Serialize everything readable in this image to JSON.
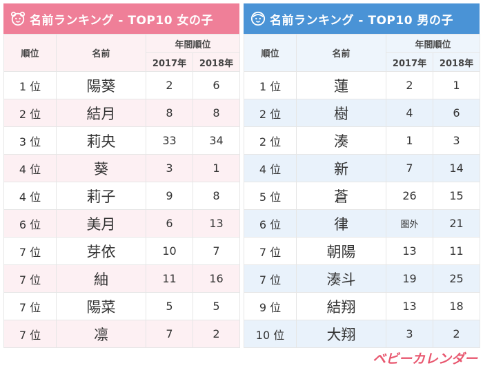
{
  "girls": {
    "title": "名前ランキング - TOP10 女の子",
    "col_rank": "順位",
    "col_name": "名前",
    "col_yearly": "年間順位",
    "col_2017": "2017年",
    "col_2018": "2018年",
    "rows": [
      {
        "rank": "1 位",
        "name": "陽葵",
        "y2017": "2",
        "y2018": "6"
      },
      {
        "rank": "2 位",
        "name": "結月",
        "y2017": "8",
        "y2018": "8"
      },
      {
        "rank": "3 位",
        "name": "莉央",
        "y2017": "33",
        "y2018": "34"
      },
      {
        "rank": "4 位",
        "name": "葵",
        "y2017": "3",
        "y2018": "1"
      },
      {
        "rank": "4 位",
        "name": "莉子",
        "y2017": "9",
        "y2018": "8"
      },
      {
        "rank": "6 位",
        "name": "美月",
        "y2017": "6",
        "y2018": "13"
      },
      {
        "rank": "7 位",
        "name": "芽依",
        "y2017": "10",
        "y2018": "7"
      },
      {
        "rank": "7 位",
        "name": "紬",
        "y2017": "11",
        "y2018": "16"
      },
      {
        "rank": "7 位",
        "name": "陽菜",
        "y2017": "5",
        "y2018": "5"
      },
      {
        "rank": "7 位",
        "name": "凛",
        "y2017": "7",
        "y2018": "2"
      }
    ]
  },
  "boys": {
    "title": "名前ランキング - TOP10 男の子",
    "col_rank": "順位",
    "col_name": "名前",
    "col_yearly": "年間順位",
    "col_2017": "2017年",
    "col_2018": "2018年",
    "rows": [
      {
        "rank": "1 位",
        "name": "蓮",
        "y2017": "2",
        "y2018": "1"
      },
      {
        "rank": "2 位",
        "name": "樹",
        "y2017": "4",
        "y2018": "6"
      },
      {
        "rank": "2 位",
        "name": "湊",
        "y2017": "1",
        "y2018": "3"
      },
      {
        "rank": "4 位",
        "name": "新",
        "y2017": "7",
        "y2018": "14"
      },
      {
        "rank": "5 位",
        "name": "蒼",
        "y2017": "26",
        "y2018": "15"
      },
      {
        "rank": "6 位",
        "name": "律",
        "y2017": "圏外",
        "y2018": "21"
      },
      {
        "rank": "7 位",
        "name": "朝陽",
        "y2017": "13",
        "y2018": "11"
      },
      {
        "rank": "7 位",
        "name": "湊斗",
        "y2017": "19",
        "y2018": "25"
      },
      {
        "rank": "9 位",
        "name": "結翔",
        "y2017": "13",
        "y2018": "18"
      },
      {
        "rank": "10 位",
        "name": "大翔",
        "y2017": "3",
        "y2018": "2"
      }
    ]
  },
  "logo_text": "ベビーカレンダー",
  "colors": {
    "girls_accent": "#ef7f98",
    "boys_accent": "#4a93d6",
    "logo": "#e8576f"
  },
  "icons": {
    "girls": "girl-face-icon",
    "boys": "boy-face-icon"
  }
}
